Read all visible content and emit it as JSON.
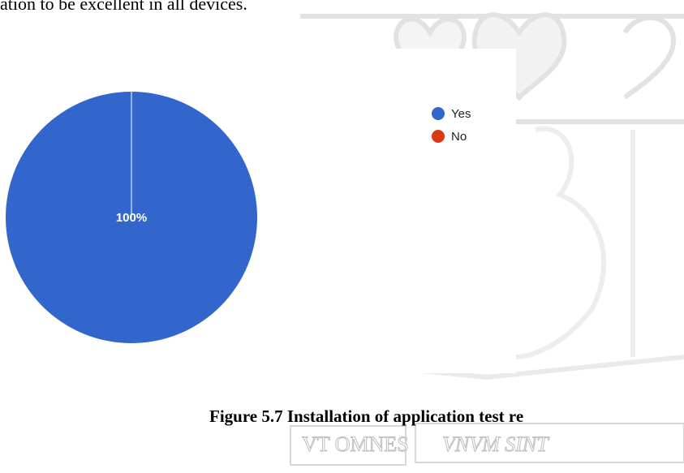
{
  "document": {
    "top_text": "ation to be excellent in all devices.",
    "caption": "Figure 5.7 Installation of application test re",
    "watermark_left": "VT OMNES",
    "watermark_right": "VNVM SINT"
  },
  "chart_data": {
    "type": "pie",
    "categories": [
      "Yes",
      "No"
    ],
    "values": [
      100,
      0
    ],
    "value_labels": [
      "100%",
      null
    ],
    "colors": [
      "#3366cc",
      "#dc3912"
    ],
    "legend": "right"
  }
}
